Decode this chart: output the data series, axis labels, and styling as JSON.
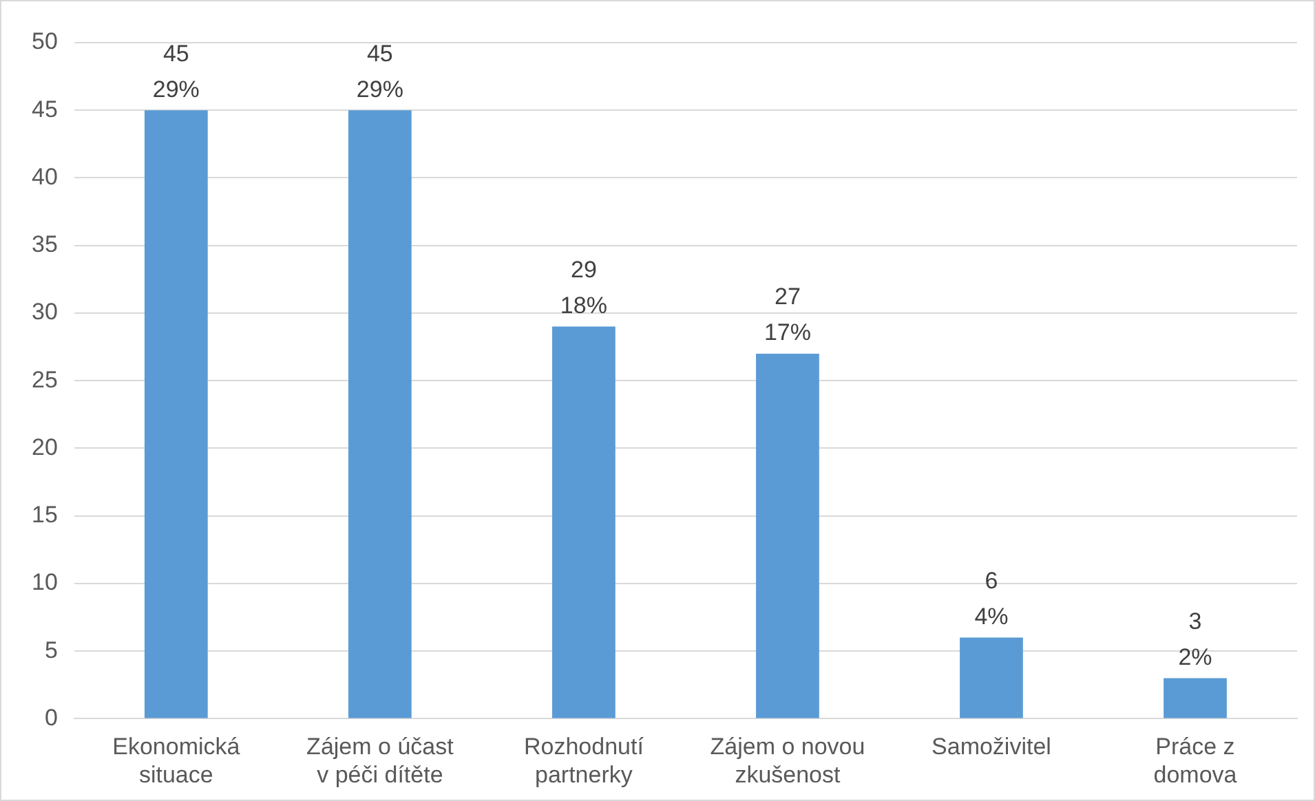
{
  "chart_data": {
    "type": "bar",
    "categories": [
      "Ekonomická situace",
      "Zájem o účast v péči dítěte",
      "Rozhodnutí partnerky",
      "Zájem o novou zkušenost",
      "Samoživitel",
      "Práce z domova"
    ],
    "values": [
      45,
      45,
      29,
      27,
      6,
      3
    ],
    "value_labels": [
      "45\n29%",
      "45\n29%",
      "29\n18%",
      "27\n17%",
      "6\n4%",
      "3\n2%"
    ],
    "color": "#5b9bd5",
    "ylim": [
      0,
      50
    ],
    "yticks": [
      0,
      5,
      10,
      15,
      20,
      25,
      30,
      35,
      40,
      45,
      50
    ],
    "grid": "y",
    "legend": false
  }
}
